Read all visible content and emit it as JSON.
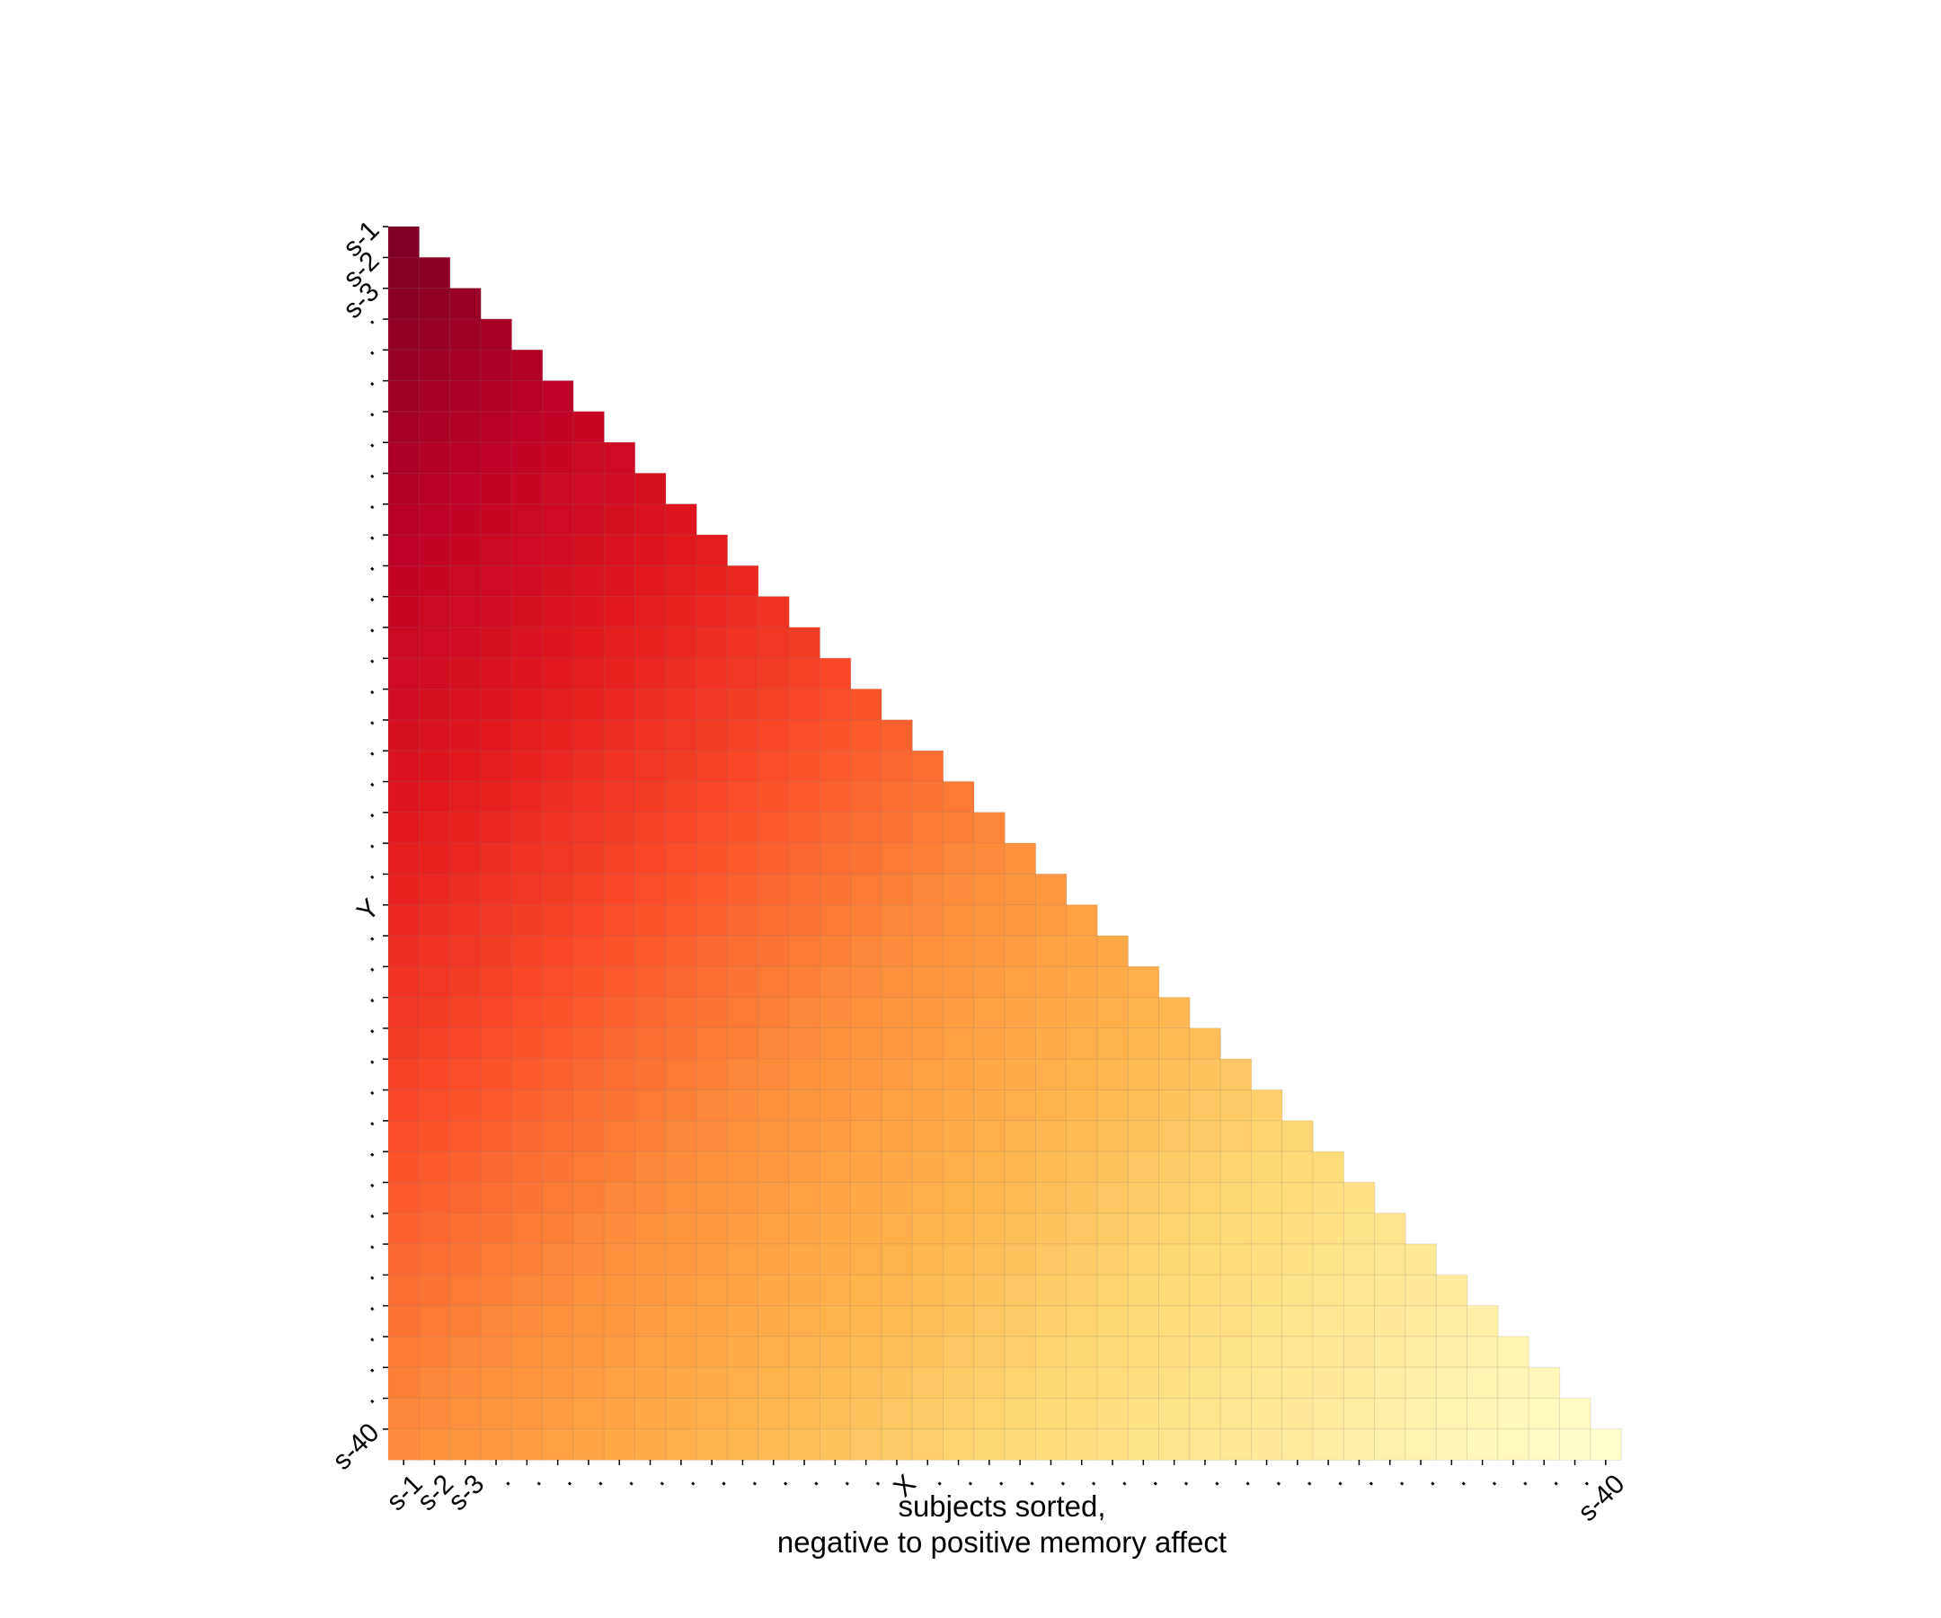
{
  "chart_data": {
    "type": "heatmap",
    "shape": "lower-triangular",
    "n": 40,
    "colormap": [
      "#800026",
      "#bd0026",
      "#e31a1c",
      "#fc4e2a",
      "#fd8d3c",
      "#feb24c",
      "#fed976",
      "#ffeda0",
      "#ffffcc"
    ],
    "x_tick_labels": [
      "s-1",
      "s-2",
      "s-3",
      "·",
      "·",
      "·",
      "·",
      "·",
      "·",
      "·",
      "·",
      "·",
      "·",
      "·",
      "·",
      "·",
      "X",
      "·",
      "·",
      "·",
      "·",
      "·",
      "·",
      "·",
      "·",
      "·",
      "·",
      "·",
      "·",
      "·",
      "·",
      "·",
      "·",
      "·",
      "·",
      "·",
      "·",
      "·",
      "·",
      "s-40"
    ],
    "y_tick_labels": [
      "s-1",
      "s-2",
      "s-3",
      "·",
      "·",
      "·",
      "·",
      "·",
      "·",
      "·",
      "·",
      "·",
      "·",
      "·",
      "·",
      "·",
      "·",
      "·",
      "·",
      "·",
      "·",
      "·",
      "Y",
      "·",
      "·",
      "·",
      "·",
      "·",
      "·",
      "·",
      "·",
      "·",
      "·",
      "·",
      "·",
      "·",
      "·",
      "·",
      "·",
      "s-40"
    ],
    "xlabel_line1": "subjects sorted,",
    "xlabel_line2": "negative to positive memory affect",
    "grid": true
  }
}
